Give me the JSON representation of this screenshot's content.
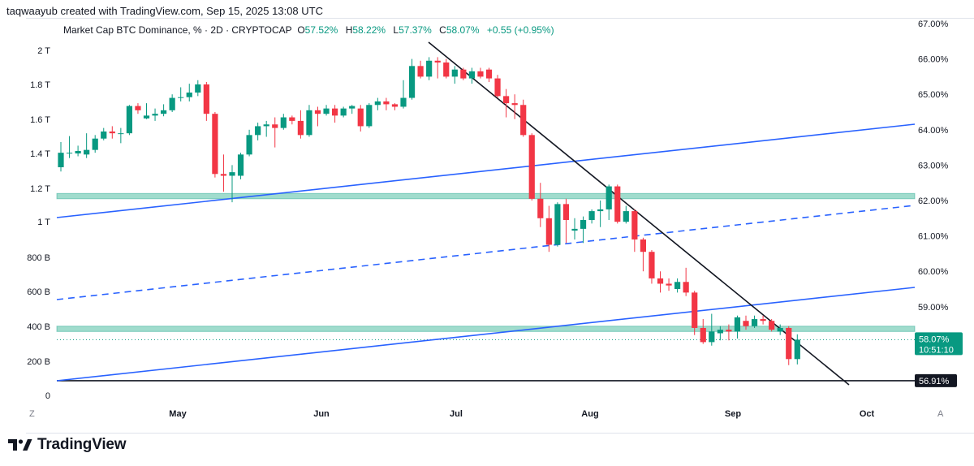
{
  "credit": "taqwaayub created with TradingView.com, Sep 15, 2025 13:08 UTC",
  "legend": {
    "symbol": "Market Cap BTC Dominance, % · 2D · CRYPTOCAP",
    "o_label": "O",
    "o": "57.52%",
    "h_label": "H",
    "h": "58.22%",
    "l_label": "L",
    "l": "57.37%",
    "c_label": "C",
    "c": "58.07%",
    "change": "+0.55 (+0.95%)"
  },
  "brand": {
    "name": "TradingView"
  },
  "corner_left": "Z",
  "corner_right": "A",
  "price_badge": {
    "value": "58.07%",
    "countdown": "10:51:10",
    "color": "#089981"
  },
  "level_badge": {
    "value": "56.91%",
    "color": "#131722"
  },
  "colors": {
    "up": "#089981",
    "down": "#f23645",
    "trend": "#2962ff",
    "zone": "#8fd6c4"
  },
  "chart_data": {
    "type": "candlestick",
    "right_axis": {
      "unit": "%",
      "ticks": [
        "67.00%",
        "66.00%",
        "65.00%",
        "64.00%",
        "63.00%",
        "62.00%",
        "61.00%",
        "60.00%",
        "59.00%"
      ],
      "range": [
        56.4,
        67.0
      ]
    },
    "left_axis": {
      "ticks": [
        "2 T",
        "1.8 T",
        "1.6 T",
        "1.4 T",
        "1.2 T",
        "1 T",
        "800 B",
        "600 B",
        "400 B",
        "200 B",
        "0"
      ]
    },
    "x_axis": {
      "ticks": [
        "May",
        "Jun",
        "Jul",
        "Aug",
        "Sep",
        "Oct"
      ]
    },
    "candles": [
      {
        "o": 62.94,
        "h": 63.65,
        "l": 62.82,
        "c": 63.35
      },
      {
        "o": 63.35,
        "h": 63.82,
        "l": 63.2,
        "c": 63.35
      },
      {
        "o": 63.33,
        "h": 63.55,
        "l": 63.25,
        "c": 63.4
      },
      {
        "o": 63.3,
        "h": 63.9,
        "l": 63.2,
        "c": 63.43
      },
      {
        "o": 63.43,
        "h": 63.85,
        "l": 63.35,
        "c": 63.75
      },
      {
        "o": 63.75,
        "h": 64.05,
        "l": 63.7,
        "c": 63.95
      },
      {
        "o": 63.95,
        "h": 64.1,
        "l": 63.75,
        "c": 63.9
      },
      {
        "o": 63.9,
        "h": 64.05,
        "l": 63.62,
        "c": 63.9
      },
      {
        "o": 63.9,
        "h": 64.7,
        "l": 63.85,
        "c": 64.67
      },
      {
        "o": 64.67,
        "h": 64.75,
        "l": 64.45,
        "c": 64.55
      },
      {
        "o": 64.32,
        "h": 64.75,
        "l": 64.3,
        "c": 64.4
      },
      {
        "o": 64.4,
        "h": 64.6,
        "l": 64.25,
        "c": 64.45
      },
      {
        "o": 64.45,
        "h": 64.72,
        "l": 64.38,
        "c": 64.55
      },
      {
        "o": 64.55,
        "h": 65.0,
        "l": 64.5,
        "c": 64.9
      },
      {
        "o": 64.9,
        "h": 65.2,
        "l": 64.8,
        "c": 64.92
      },
      {
        "o": 64.92,
        "h": 65.3,
        "l": 64.8,
        "c": 65.05
      },
      {
        "o": 65.05,
        "h": 65.4,
        "l": 64.95,
        "c": 65.28
      },
      {
        "o": 65.28,
        "h": 65.35,
        "l": 64.25,
        "c": 64.45
      },
      {
        "o": 64.45,
        "h": 64.5,
        "l": 62.65,
        "c": 62.75
      },
      {
        "o": 62.75,
        "h": 63.3,
        "l": 62.25,
        "c": 62.7
      },
      {
        "o": 62.7,
        "h": 63.0,
        "l": 61.95,
        "c": 62.8
      },
      {
        "o": 62.7,
        "h": 63.35,
        "l": 62.6,
        "c": 63.3
      },
      {
        "o": 63.3,
        "h": 64.0,
        "l": 63.25,
        "c": 63.85
      },
      {
        "o": 63.85,
        "h": 64.2,
        "l": 63.7,
        "c": 64.1
      },
      {
        "o": 64.1,
        "h": 64.25,
        "l": 63.8,
        "c": 64.15
      },
      {
        "o": 64.15,
        "h": 64.35,
        "l": 63.5,
        "c": 64.05
      },
      {
        "o": 64.05,
        "h": 64.45,
        "l": 64.0,
        "c": 64.35
      },
      {
        "o": 64.35,
        "h": 64.4,
        "l": 64.15,
        "c": 64.25
      },
      {
        "o": 64.25,
        "h": 64.55,
        "l": 63.75,
        "c": 63.85
      },
      {
        "o": 63.85,
        "h": 64.7,
        "l": 63.8,
        "c": 64.55
      },
      {
        "o": 64.55,
        "h": 64.65,
        "l": 64.1,
        "c": 64.45
      },
      {
        "o": 64.45,
        "h": 64.7,
        "l": 64.4,
        "c": 64.6
      },
      {
        "o": 64.6,
        "h": 64.7,
        "l": 64.2,
        "c": 64.4
      },
      {
        "o": 64.4,
        "h": 64.65,
        "l": 64.35,
        "c": 64.6
      },
      {
        "o": 64.6,
        "h": 64.7,
        "l": 64.45,
        "c": 64.67
      },
      {
        "o": 64.6,
        "h": 64.7,
        "l": 63.95,
        "c": 64.1
      },
      {
        "o": 64.1,
        "h": 64.75,
        "l": 64.05,
        "c": 64.7
      },
      {
        "o": 64.7,
        "h": 64.9,
        "l": 64.55,
        "c": 64.8
      },
      {
        "o": 64.8,
        "h": 64.9,
        "l": 64.55,
        "c": 64.72
      },
      {
        "o": 64.72,
        "h": 64.75,
        "l": 64.55,
        "c": 64.65
      },
      {
        "o": 64.65,
        "h": 65.4,
        "l": 64.6,
        "c": 64.9
      },
      {
        "o": 64.9,
        "h": 66.0,
        "l": 64.85,
        "c": 65.8
      },
      {
        "o": 65.8,
        "h": 65.95,
        "l": 65.45,
        "c": 65.5
      },
      {
        "o": 65.5,
        "h": 66.05,
        "l": 65.4,
        "c": 65.95
      },
      {
        "o": 65.95,
        "h": 66.05,
        "l": 65.45,
        "c": 65.9
      },
      {
        "o": 65.9,
        "h": 66.0,
        "l": 65.45,
        "c": 65.5
      },
      {
        "o": 65.5,
        "h": 65.8,
        "l": 65.3,
        "c": 65.7
      },
      {
        "o": 65.7,
        "h": 65.75,
        "l": 65.4,
        "c": 65.45
      },
      {
        "o": 65.45,
        "h": 65.75,
        "l": 65.3,
        "c": 65.65
      },
      {
        "o": 65.65,
        "h": 65.75,
        "l": 65.45,
        "c": 65.5
      },
      {
        "o": 65.7,
        "h": 65.75,
        "l": 65.35,
        "c": 65.45
      },
      {
        "o": 65.45,
        "h": 65.55,
        "l": 64.9,
        "c": 64.95
      },
      {
        "o": 64.95,
        "h": 65.15,
        "l": 64.35,
        "c": 64.75
      },
      {
        "o": 64.75,
        "h": 65.0,
        "l": 64.3,
        "c": 64.7
      },
      {
        "o": 64.7,
        "h": 64.85,
        "l": 63.8,
        "c": 63.85
      },
      {
        "o": 63.85,
        "h": 63.9,
        "l": 62.0,
        "c": 62.05
      },
      {
        "o": 62.05,
        "h": 62.5,
        "l": 61.25,
        "c": 61.5
      },
      {
        "o": 61.5,
        "h": 61.85,
        "l": 60.55,
        "c": 60.75
      },
      {
        "o": 60.75,
        "h": 61.95,
        "l": 60.7,
        "c": 61.9
      },
      {
        "o": 61.9,
        "h": 62.05,
        "l": 60.8,
        "c": 61.45
      },
      {
        "o": 61.15,
        "h": 61.5,
        "l": 60.9,
        "c": 61.2
      },
      {
        "o": 61.2,
        "h": 61.55,
        "l": 60.8,
        "c": 61.45
      },
      {
        "o": 61.45,
        "h": 61.75,
        "l": 61.35,
        "c": 61.7
      },
      {
        "o": 61.7,
        "h": 62.0,
        "l": 61.25,
        "c": 61.75
      },
      {
        "o": 61.75,
        "h": 62.45,
        "l": 61.45,
        "c": 62.4
      },
      {
        "o": 62.4,
        "h": 62.45,
        "l": 61.35,
        "c": 61.4
      },
      {
        "o": 61.4,
        "h": 61.85,
        "l": 61.35,
        "c": 61.7
      },
      {
        "o": 61.7,
        "h": 61.75,
        "l": 60.55,
        "c": 60.9
      },
      {
        "o": 60.9,
        "h": 60.95,
        "l": 60.0,
        "c": 60.55
      },
      {
        "o": 60.55,
        "h": 60.6,
        "l": 59.65,
        "c": 59.8
      },
      {
        "o": 59.8,
        "h": 60.0,
        "l": 59.4,
        "c": 59.65
      },
      {
        "o": 59.65,
        "h": 59.8,
        "l": 59.45,
        "c": 59.6
      },
      {
        "o": 59.5,
        "h": 59.8,
        "l": 59.4,
        "c": 59.7
      },
      {
        "o": 59.7,
        "h": 60.1,
        "l": 59.3,
        "c": 59.4
      },
      {
        "o": 59.4,
        "h": 59.45,
        "l": 58.2,
        "c": 58.4
      },
      {
        "o": 58.4,
        "h": 58.65,
        "l": 57.95,
        "c": 58.0
      },
      {
        "o": 58.0,
        "h": 58.8,
        "l": 57.9,
        "c": 58.3
      },
      {
        "o": 58.25,
        "h": 58.45,
        "l": 58.05,
        "c": 58.35
      },
      {
        "o": 58.35,
        "h": 58.5,
        "l": 58.05,
        "c": 58.3
      },
      {
        "o": 58.3,
        "h": 58.75,
        "l": 58.1,
        "c": 58.7
      },
      {
        "o": 58.6,
        "h": 58.75,
        "l": 58.35,
        "c": 58.45
      },
      {
        "o": 58.45,
        "h": 58.75,
        "l": 58.4,
        "c": 58.65
      },
      {
        "o": 58.65,
        "h": 58.75,
        "l": 58.5,
        "c": 58.6
      },
      {
        "o": 58.6,
        "h": 58.65,
        "l": 58.3,
        "c": 58.35
      },
      {
        "o": 58.3,
        "h": 58.5,
        "l": 58.2,
        "c": 58.4
      },
      {
        "o": 58.4,
        "h": 58.45,
        "l": 57.35,
        "c": 57.52
      },
      {
        "o": 57.52,
        "h": 58.22,
        "l": 57.37,
        "c": 58.07
      }
    ],
    "zones": [
      {
        "from": 62.05,
        "to": 62.2
      },
      {
        "from": 58.3,
        "to": 58.45
      }
    ],
    "horizontal_levels": [
      {
        "value": 56.91,
        "style": "solid"
      },
      {
        "value": 58.07,
        "style": "dotted"
      }
    ]
  }
}
